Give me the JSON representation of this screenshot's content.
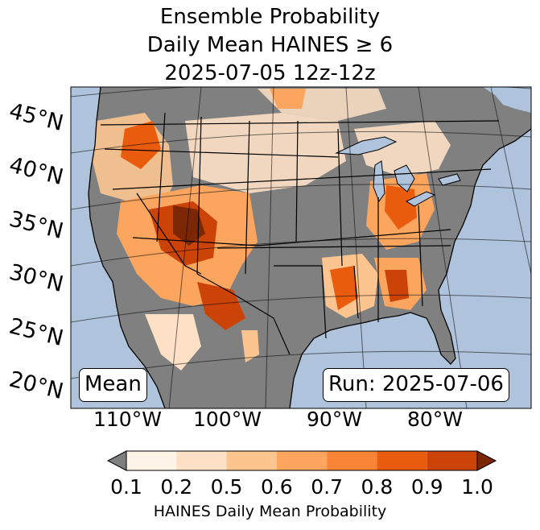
{
  "title_lines": [
    "Ensemble Probability",
    "Daily Mean HAINES ≥ 6",
    "2025-07-05 12z-12z"
  ],
  "latitude_labels": [
    "45°N",
    "40°N",
    "35°N",
    "30°N",
    "25°N",
    "20°N"
  ],
  "longitude_labels": [
    "110°W",
    "100°W",
    "90°W",
    "80°W"
  ],
  "left_box_label": "Mean",
  "right_box_label": "Run: 2025-07-06",
  "colorbar": {
    "ticks": [
      "0.1",
      "0.2",
      "0.5",
      "0.6",
      "0.7",
      "0.8",
      "0.9",
      "1.0"
    ],
    "label": "HAINES Daily Mean Probability",
    "colors": [
      "#fef3e7",
      "#fde0c5",
      "#fcc590",
      "#fca55f",
      "#f98436",
      "#e95c0e",
      "#cc4307"
    ],
    "under_color": "#7f7f7f",
    "over_color": "#7b2605"
  },
  "map_colors": {
    "ocean": "#afc4dc",
    "no_data": "#808080",
    "lakes": "#afc4dc"
  }
}
